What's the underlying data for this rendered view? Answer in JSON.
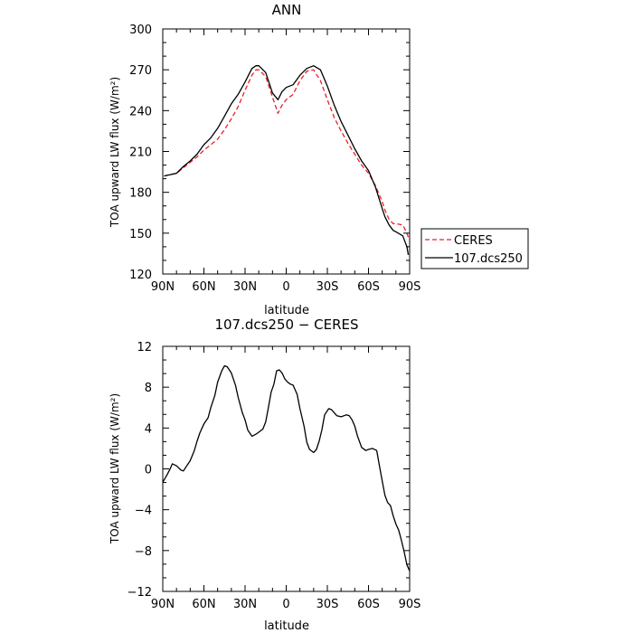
{
  "chart_data": [
    {
      "type": "line",
      "title": "ANN",
      "xlabel": "latitude",
      "ylabel": "TOA upward LW flux (W/m²)",
      "xlim": [
        -90,
        90
      ],
      "ylim": [
        120,
        300
      ],
      "xticks": [
        -90,
        -60,
        -30,
        0,
        30,
        60,
        90
      ],
      "xtick_labels": [
        "90N",
        "60N",
        "30N",
        "0",
        "30S",
        "60S",
        "90S"
      ],
      "yticks": [
        120,
        150,
        180,
        210,
        240,
        270,
        300
      ],
      "ytick_labels": [
        "120",
        "150",
        "180",
        "210",
        "240",
        "270",
        "300"
      ],
      "legend_position": "right",
      "series": [
        {
          "name": "CERES",
          "color": "#e8202a",
          "dash": "dashed",
          "x": [
            -89,
            -80,
            -75,
            -70,
            -65,
            -60,
            -55,
            -50,
            -45,
            -40,
            -35,
            -30,
            -25,
            -22,
            -20,
            -15,
            -10,
            -6,
            -3,
            0,
            5,
            10,
            15,
            20,
            25,
            30,
            35,
            40,
            45,
            50,
            55,
            60,
            65,
            70,
            72,
            75,
            78,
            80,
            85,
            88,
            89
          ],
          "y": [
            192,
            194,
            198,
            202,
            206,
            211,
            215,
            219,
            226,
            234,
            243,
            255,
            266,
            270,
            270,
            265,
            250,
            238,
            244,
            248,
            252,
            262,
            269,
            270,
            262,
            248,
            235,
            225,
            216,
            208,
            200,
            194,
            185,
            173,
            167,
            160,
            157,
            157,
            156,
            150,
            147
          ]
        },
        {
          "name": "107.dcs250",
          "color": "#000000",
          "dash": "solid",
          "x": [
            -89,
            -80,
            -75,
            -70,
            -65,
            -60,
            -55,
            -50,
            -45,
            -40,
            -35,
            -30,
            -25,
            -22,
            -20,
            -15,
            -10,
            -6,
            -3,
            0,
            5,
            10,
            15,
            20,
            25,
            30,
            35,
            40,
            45,
            50,
            55,
            60,
            65,
            70,
            72,
            75,
            78,
            80,
            85,
            88,
            89
          ],
          "y": [
            192,
            194,
            199,
            203,
            208,
            215,
            220,
            227,
            236,
            245,
            252,
            261,
            271,
            273,
            273,
            268,
            253,
            248,
            254,
            257,
            259,
            266,
            271,
            273,
            270,
            258,
            244,
            232,
            222,
            212,
            203,
            196,
            184,
            168,
            162,
            156,
            152,
            151,
            148,
            140,
            134
          ]
        }
      ]
    },
    {
      "type": "line",
      "title": "107.dcs250 − CERES",
      "xlabel": "latitude",
      "ylabel": "TOA upward LW flux (W/m²)",
      "xlim": [
        -90,
        90
      ],
      "ylim": [
        -12,
        12
      ],
      "xticks": [
        -90,
        -60,
        -30,
        0,
        30,
        60,
        90
      ],
      "xtick_labels": [
        "90N",
        "60N",
        "30N",
        "0",
        "30S",
        "60S",
        "90S"
      ],
      "yticks": [
        -12,
        -8,
        -4,
        0,
        4,
        8,
        12
      ],
      "ytick_labels": [
        "−12",
        "−8",
        "−4",
        "0",
        "4",
        "8",
        "12"
      ],
      "series": [
        {
          "color": "#000000",
          "dash": "solid",
          "x": [
            -90,
            -87,
            -85,
            -83,
            -80,
            -77,
            -75,
            -73,
            -70,
            -67,
            -65,
            -63,
            -60,
            -57,
            -55,
            -52,
            -50,
            -47,
            -45,
            -43,
            -40,
            -37,
            -35,
            -32,
            -30,
            -28,
            -25,
            -22,
            -20,
            -17,
            -15,
            -13,
            -11,
            -9,
            -7,
            -5,
            -3,
            -1,
            1,
            3,
            5,
            8,
            10,
            13,
            15,
            17,
            20,
            22,
            24,
            26,
            28,
            31,
            33,
            35,
            37,
            40,
            42,
            44,
            46,
            48,
            50,
            52,
            55,
            58,
            60,
            63,
            66,
            68,
            70,
            72,
            74,
            76,
            78,
            80,
            82,
            84,
            86,
            88,
            90
          ],
          "y": [
            -1.3,
            -0.6,
            -0.1,
            0.5,
            0.3,
            -0.1,
            -0.2,
            0.2,
            0.8,
            1.8,
            2.7,
            3.5,
            4.4,
            5.0,
            6.0,
            7.2,
            8.5,
            9.6,
            10.1,
            10.0,
            9.4,
            8.2,
            7.0,
            5.5,
            4.8,
            3.8,
            3.2,
            3.4,
            3.6,
            3.9,
            4.6,
            6.0,
            7.5,
            8.3,
            9.6,
            9.7,
            9.4,
            8.8,
            8.5,
            8.3,
            8.2,
            7.3,
            5.9,
            4.2,
            2.6,
            1.9,
            1.6,
            1.9,
            2.7,
            3.8,
            5.3,
            5.9,
            5.8,
            5.5,
            5.2,
            5.1,
            5.2,
            5.3,
            5.2,
            4.8,
            4.2,
            3.2,
            2.1,
            1.8,
            1.9,
            2.0,
            1.8,
            0.3,
            -1.2,
            -2.6,
            -3.3,
            -3.6,
            -4.6,
            -5.4,
            -6.0,
            -7.0,
            -8.1,
            -9.4,
            -10.0
          ]
        }
      ]
    }
  ]
}
